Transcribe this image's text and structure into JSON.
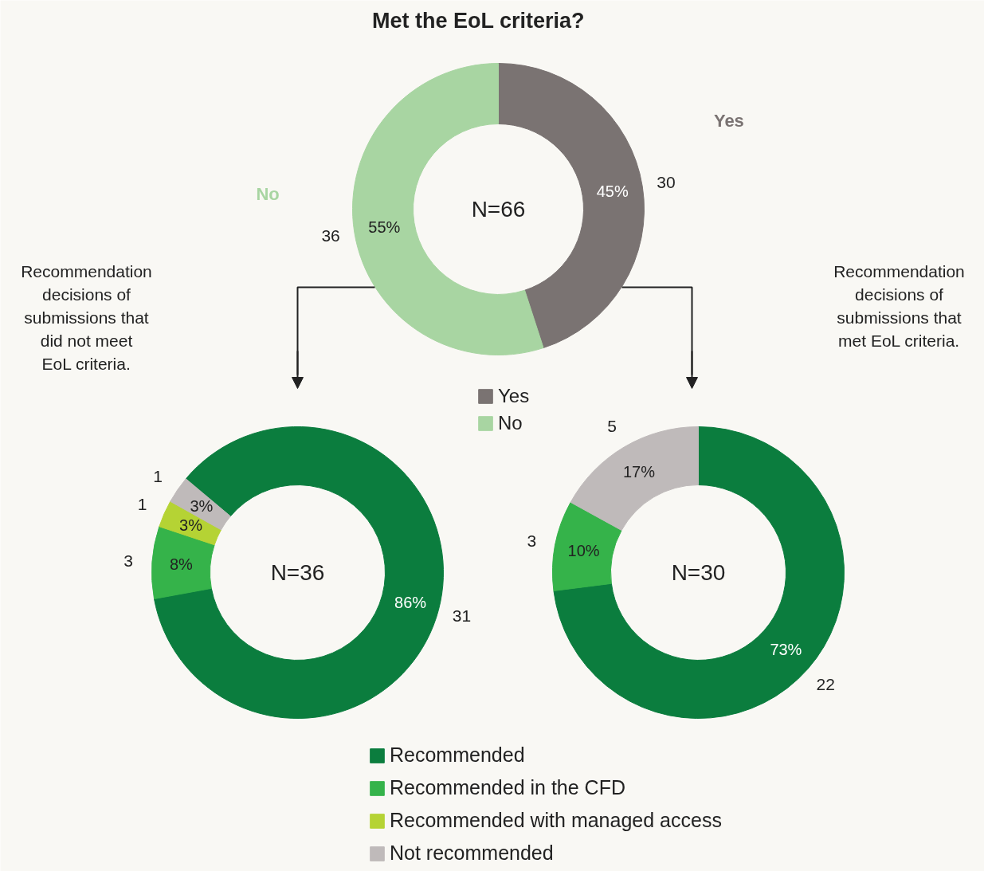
{
  "chart_data": [
    {
      "type": "donut",
      "title": "Met the EoL criteria?",
      "categories": [
        "Yes",
        "No"
      ],
      "values": [
        45,
        55
      ],
      "colors": [
        "#7a7372",
        "#a8d5a2"
      ],
      "value_labels": [
        "45%",
        "55%"
      ],
      "legend": "bottom",
      "annotations": [
        "N=66",
        {
          "text": "30",
          "x": "Yes"
        },
        {
          "text": "36",
          "x": "No"
        }
      ]
    },
    {
      "type": "donut",
      "categories": [
        "Recommended",
        "Recommended in the CFD",
        "Recommended with managed access",
        "Not recommended"
      ],
      "values": [
        86,
        8,
        3,
        3
      ],
      "colors": [
        "#0b7d3e",
        "#35b34a",
        "#b5d334",
        "#bfbaba"
      ],
      "value_labels": [
        "86%",
        "8%",
        "3%",
        "3%"
      ],
      "legend": "bottom",
      "annotations": [
        "N=36",
        "Recommendation\ndecisions of\nsubmissions that\ndid not meet\nEoL criteria.",
        {
          "text": "31",
          "x": "Recommended"
        },
        {
          "text": "3",
          "x": "Recommended in the CFD"
        },
        {
          "text": "1",
          "x": "Recommended with managed access"
        },
        {
          "text": "1",
          "x": "Not recommended"
        }
      ]
    },
    {
      "type": "donut",
      "categories": [
        null,
        null,
        null
      ],
      "values": [
        73,
        10,
        17
      ],
      "colors": [
        "#0b7d3e",
        "#35b34a",
        "#bfbaba"
      ],
      "value_labels": [
        "73%",
        "10%",
        "17%"
      ],
      "annotations": [
        "N=30",
        "Recommendation\ndecisions of\nsubmissions that\nmet EoL criteria.",
        "22",
        "3",
        "5"
      ]
    }
  ]
}
